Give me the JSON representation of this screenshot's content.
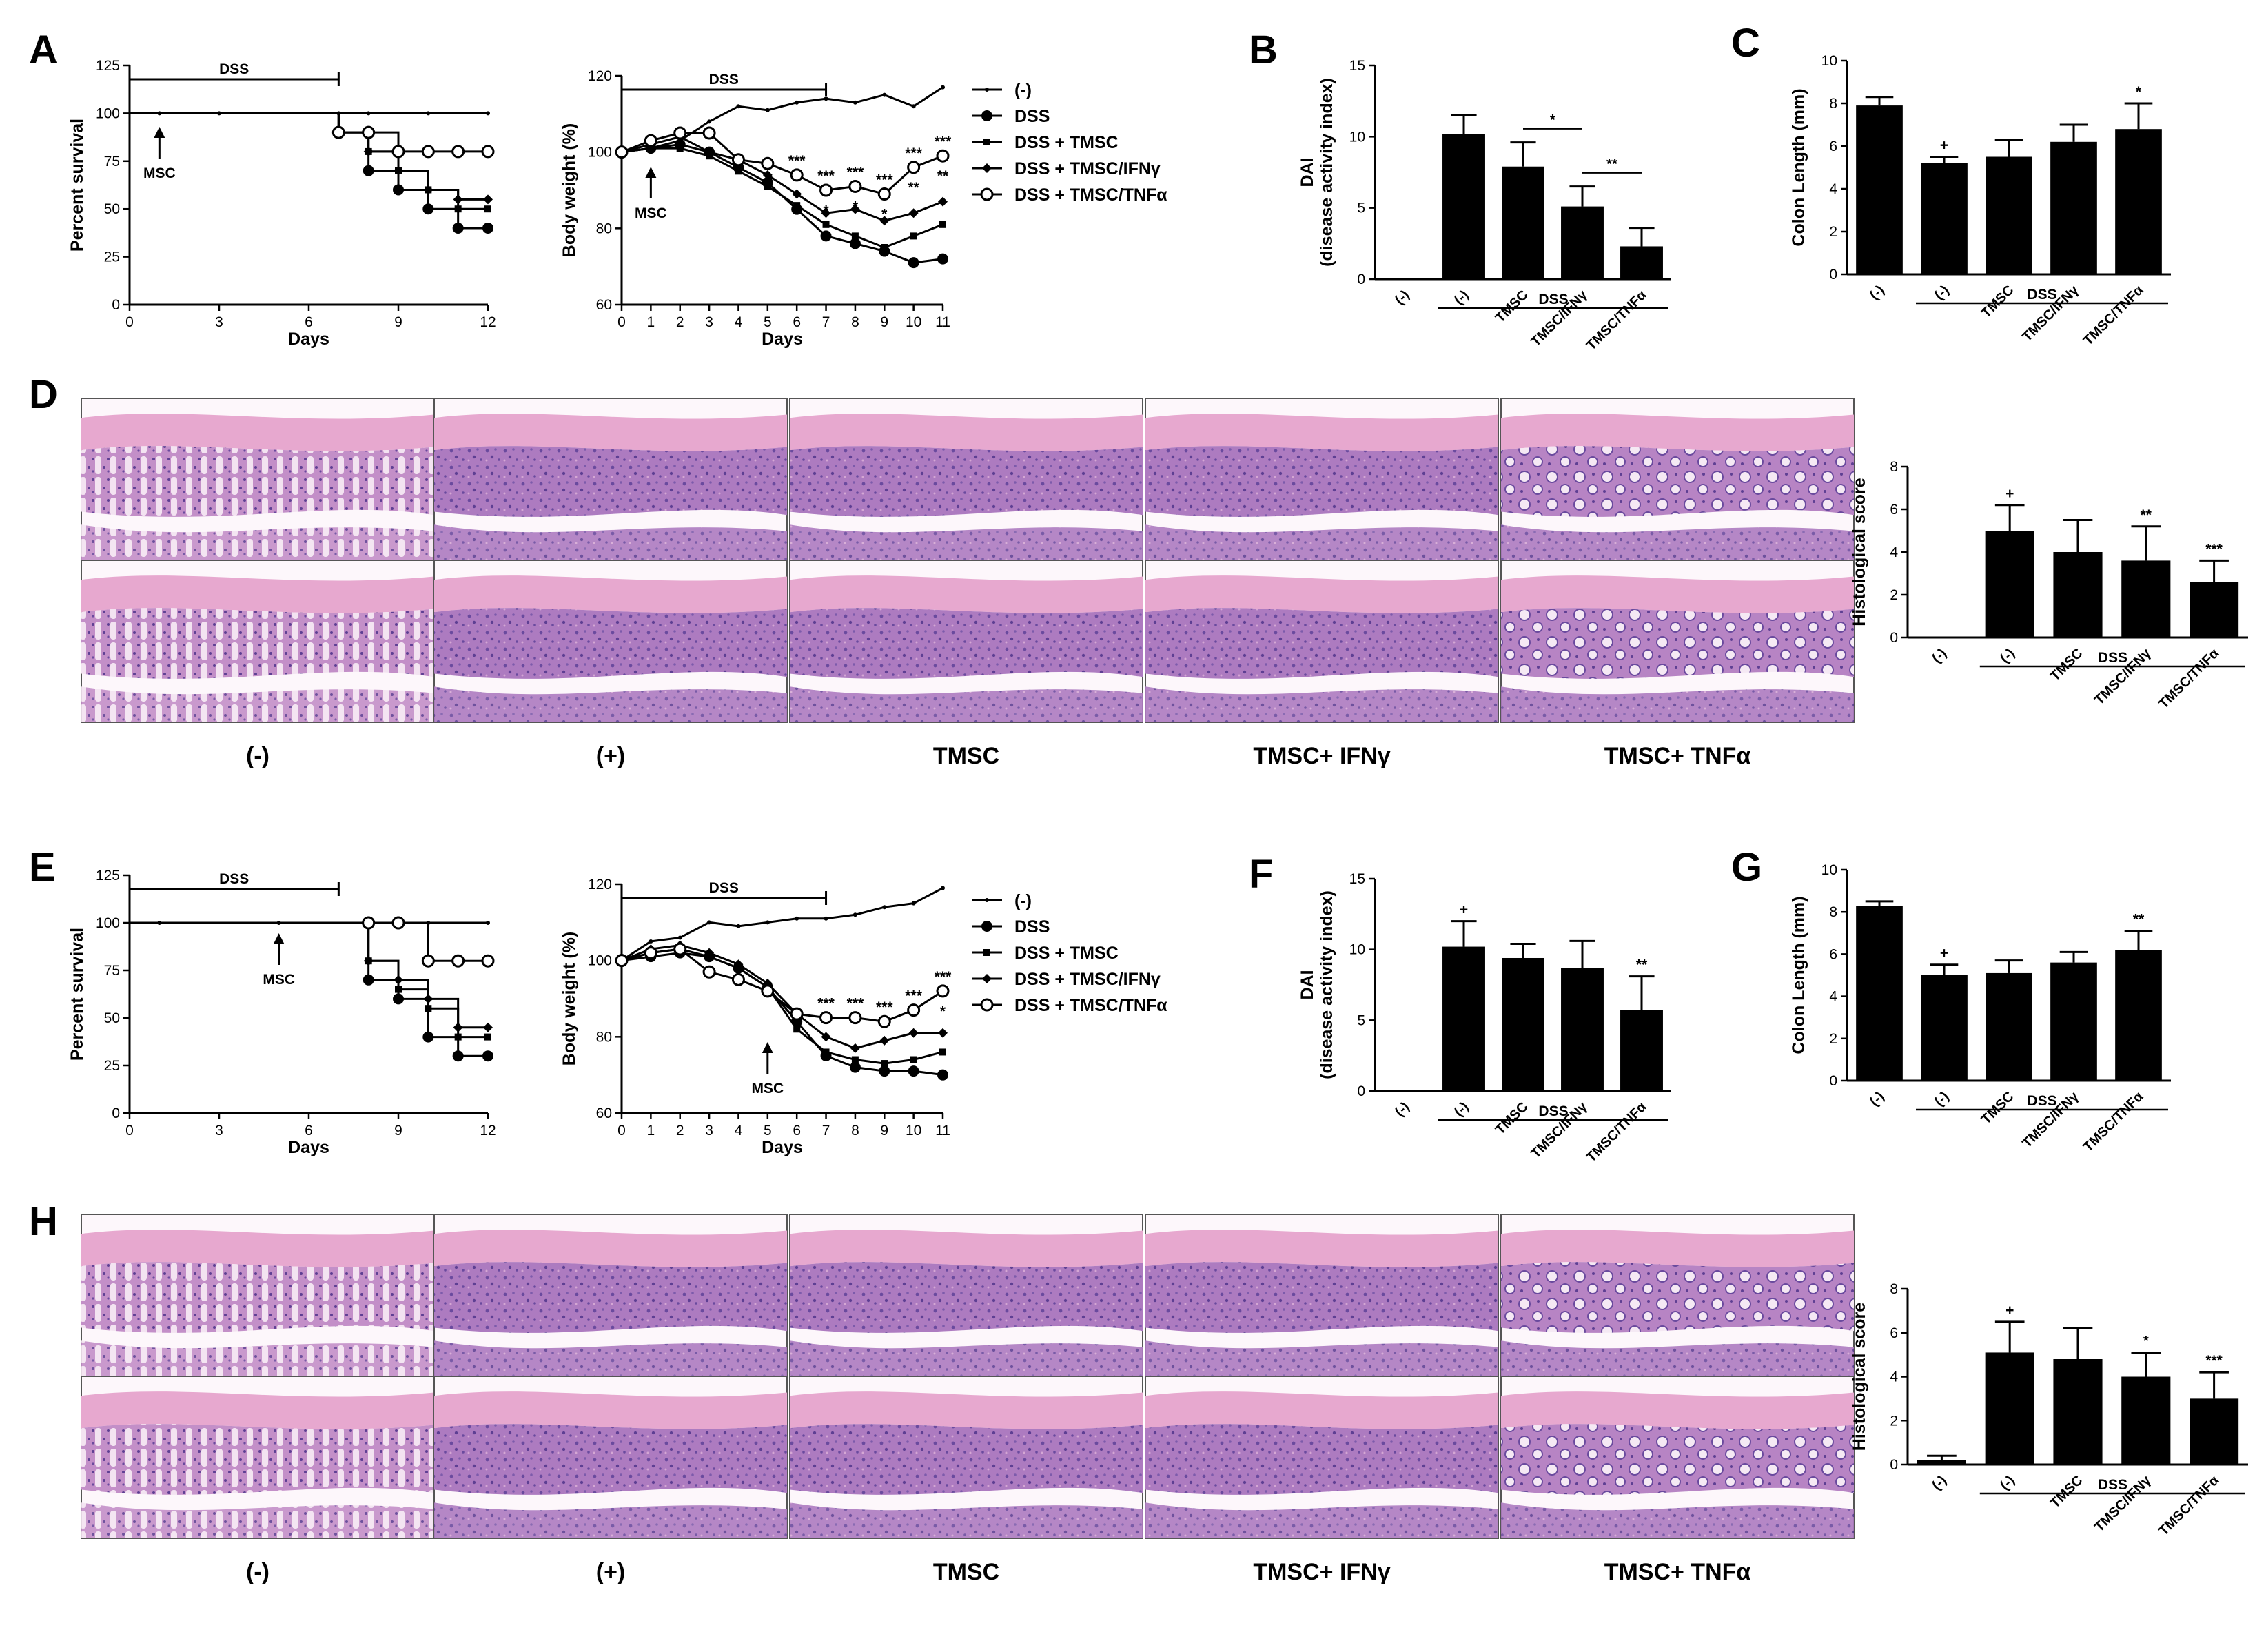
{
  "colors": {
    "ink": "#000000",
    "histo_background": "#e8cde6",
    "histo_stroma": "#b97fc0",
    "histo_nuclei": "#6a4a9e",
    "histo_muscle": "#e7a8cf"
  },
  "histology_groups": [
    "(-)",
    "(+)",
    "TMSC",
    "TMSC+ IFNγ",
    "TMSC+ TNFα"
  ],
  "chart_data": [
    {
      "id": "A-survival",
      "panel": "A",
      "type": "line",
      "kind": "survival",
      "xlabel": "Days",
      "ylabel": "Percent survival",
      "xlim": [
        0,
        12
      ],
      "ylim": [
        0,
        125
      ],
      "xticks": [
        0,
        3,
        6,
        9,
        12
      ],
      "yticks": [
        0,
        25,
        50,
        75,
        100,
        125
      ],
      "dss_label": "DSS",
      "dss_range": [
        0,
        7
      ],
      "msc_label": "MSC",
      "msc_day": 1,
      "series": [
        {
          "name": "(-)",
          "marker": "dot",
          "x": [
            0,
            1,
            3,
            7,
            8,
            10,
            12
          ],
          "y": [
            100,
            100,
            100,
            100,
            100,
            100,
            100
          ]
        },
        {
          "name": "DSS",
          "marker": "circle-filled",
          "x": [
            0,
            7,
            8,
            9,
            10,
            11,
            12
          ],
          "y": [
            100,
            90,
            70,
            60,
            50,
            40,
            40
          ]
        },
        {
          "name": "DSS + TMSC",
          "marker": "square",
          "x": [
            0,
            7,
            8,
            9,
            10,
            11,
            12
          ],
          "y": [
            100,
            90,
            80,
            70,
            60,
            50,
            50
          ]
        },
        {
          "name": "DSS + TMSC/IFNγ",
          "marker": "diamond",
          "x": [
            0,
            7,
            8,
            9,
            10,
            11,
            12
          ],
          "y": [
            100,
            90,
            80,
            70,
            60,
            55,
            55
          ]
        },
        {
          "name": "DSS + TMSC/TNFα",
          "marker": "circle-open",
          "x": [
            0,
            7,
            8,
            9,
            10,
            11,
            12
          ],
          "y": [
            100,
            90,
            90,
            80,
            80,
            80,
            80
          ]
        }
      ]
    },
    {
      "id": "A-weight",
      "panel": "A",
      "type": "line",
      "kind": "weight",
      "xlabel": "Days",
      "ylabel": "Body weight (%)",
      "xlim": [
        0,
        11
      ],
      "ylim": [
        60,
        120
      ],
      "xticks": [
        0,
        1,
        2,
        3,
        4,
        5,
        6,
        7,
        8,
        9,
        10,
        11
      ],
      "yticks": [
        60,
        80,
        100,
        120
      ],
      "dss_label": "DSS",
      "dss_range": [
        0,
        7
      ],
      "msc_label": "MSC",
      "msc_day": 1,
      "legend": [
        "(-)",
        "DSS",
        "DSS + TMSC",
        "DSS + TMSC/IFNγ",
        "DSS + TMSC/TNFα"
      ],
      "series": [
        {
          "name": "(-)",
          "marker": "dot",
          "x": [
            0,
            1,
            2,
            3,
            4,
            5,
            6,
            7,
            8,
            9,
            10,
            11
          ],
          "y": [
            100,
            101,
            103,
            108,
            112,
            111,
            113,
            114,
            113,
            115,
            112,
            117
          ]
        },
        {
          "name": "DSS",
          "marker": "circle-filled",
          "x": [
            0,
            1,
            2,
            3,
            4,
            5,
            6,
            7,
            8,
            9,
            10,
            11
          ],
          "y": [
            100,
            101,
            102,
            100,
            96,
            92,
            85,
            78,
            76,
            74,
            71,
            72
          ]
        },
        {
          "name": "DSS + TMSC",
          "marker": "square",
          "x": [
            0,
            1,
            2,
            3,
            4,
            5,
            6,
            7,
            8,
            9,
            10,
            11
          ],
          "y": [
            100,
            101,
            101,
            99,
            95,
            91,
            86,
            81,
            78,
            75,
            78,
            81
          ]
        },
        {
          "name": "DSS + TMSC/IFNγ",
          "marker": "diamond",
          "x": [
            0,
            1,
            2,
            3,
            4,
            5,
            6,
            7,
            8,
            9,
            10,
            11
          ],
          "y": [
            100,
            102,
            104,
            100,
            98,
            94,
            89,
            84,
            85,
            82,
            84,
            87
          ]
        },
        {
          "name": "DSS + TMSC/TNFα",
          "marker": "circle-open",
          "x": [
            0,
            1,
            2,
            3,
            4,
            5,
            6,
            7,
            8,
            9,
            10,
            11
          ],
          "y": [
            100,
            103,
            105,
            105,
            98,
            97,
            94,
            90,
            91,
            89,
            96,
            99
          ]
        }
      ],
      "annotations": [
        {
          "x": 6,
          "lines": [
            "***"
          ]
        },
        {
          "x": 7,
          "lines": [
            "***",
            "*"
          ]
        },
        {
          "x": 8,
          "lines": [
            "***",
            "*"
          ]
        },
        {
          "x": 9,
          "lines": [
            "***",
            "*"
          ]
        },
        {
          "x": 10,
          "lines": [
            "***",
            "**"
          ]
        },
        {
          "x": 11,
          "lines": [
            "***",
            "**"
          ]
        }
      ]
    },
    {
      "id": "B",
      "panel": "B",
      "type": "bar",
      "ylabel": "DAI\n(disease activity index)",
      "ylim": [
        0,
        15
      ],
      "yticks": [
        0,
        5,
        10,
        15
      ],
      "categories": [
        "(-)",
        "(-)",
        "TMSC",
        "TMSC/IFNγ",
        "TMSC/TNFα"
      ],
      "values": [
        0,
        10.2,
        7.9,
        5.1,
        2.3
      ],
      "errors": [
        0,
        1.3,
        1.7,
        1.4,
        1.3
      ],
      "marks": [
        "",
        "",
        "",
        "",
        ""
      ],
      "group_label": "DSS",
      "group_start": 1,
      "sig_brackets": [
        {
          "from": 2,
          "to": 3,
          "label": "*"
        },
        {
          "from": 3,
          "to": 4,
          "label": "**"
        }
      ]
    },
    {
      "id": "C",
      "panel": "C",
      "type": "bar",
      "ylabel": "Colon Length (mm)",
      "ylim": [
        0,
        10
      ],
      "yticks": [
        0,
        2,
        4,
        6,
        8,
        10
      ],
      "categories": [
        "(-)",
        "(-)",
        "TMSC",
        "TMSC/IFNγ",
        "TMSC/TNFα"
      ],
      "values": [
        7.9,
        5.2,
        5.5,
        6.2,
        6.8
      ],
      "errors": [
        0.4,
        0.3,
        0.8,
        0.8,
        1.2
      ],
      "marks": [
        "",
        "+",
        "",
        "",
        "*"
      ],
      "group_label": "DSS",
      "group_start": 1,
      "sig_brackets": []
    },
    {
      "id": "D-score",
      "panel": "D",
      "type": "bar",
      "ylabel": "Histological score",
      "ylim": [
        0,
        8
      ],
      "yticks": [
        0,
        2,
        4,
        6,
        8
      ],
      "categories": [
        "(-)",
        "(-)",
        "TMSC",
        "TMSC/IFNγ",
        "TMSC/TNFα"
      ],
      "values": [
        0,
        5.0,
        4.0,
        3.6,
        2.6
      ],
      "errors": [
        0,
        1.2,
        1.5,
        1.6,
        1.0
      ],
      "marks": [
        "",
        "+",
        "",
        "**",
        "***"
      ],
      "group_label": "DSS",
      "group_start": 1,
      "sig_brackets": []
    },
    {
      "id": "E-survival",
      "panel": "E",
      "type": "line",
      "kind": "survival",
      "xlabel": "Days",
      "ylabel": "Percent survival",
      "xlim": [
        0,
        12
      ],
      "ylim": [
        0,
        125
      ],
      "xticks": [
        0,
        3,
        6,
        9,
        12
      ],
      "yticks": [
        0,
        25,
        50,
        75,
        100,
        125
      ],
      "dss_label": "DSS",
      "dss_range": [
        0,
        7
      ],
      "msc_label": "MSC",
      "msc_day": 5,
      "series": [
        {
          "name": "(-)",
          "marker": "dot",
          "x": [
            0,
            1,
            5,
            8,
            10,
            12
          ],
          "y": [
            100,
            100,
            100,
            100,
            100,
            100
          ]
        },
        {
          "name": "DSS",
          "marker": "circle-filled",
          "x": [
            0,
            8,
            9,
            10,
            11,
            12
          ],
          "y": [
            100,
            70,
            60,
            40,
            30,
            30
          ]
        },
        {
          "name": "DSS + TMSC",
          "marker": "square",
          "x": [
            0,
            8,
            9,
            10,
            11,
            12
          ],
          "y": [
            100,
            80,
            65,
            55,
            40,
            40
          ]
        },
        {
          "name": "DSS + TMSC/IFNγ",
          "marker": "diamond",
          "x": [
            0,
            8,
            9,
            10,
            11,
            12
          ],
          "y": [
            100,
            80,
            70,
            60,
            45,
            45
          ]
        },
        {
          "name": "DSS + TMSC/TNFα",
          "marker": "circle-open",
          "x": [
            0,
            8,
            9,
            10,
            11,
            12
          ],
          "y": [
            100,
            100,
            100,
            80,
            80,
            80
          ]
        }
      ]
    },
    {
      "id": "E-weight",
      "panel": "E",
      "type": "line",
      "kind": "weight",
      "xlabel": "Days",
      "ylabel": "Body weight (%)",
      "xlim": [
        0,
        11
      ],
      "ylim": [
        60,
        120
      ],
      "xticks": [
        0,
        1,
        2,
        3,
        4,
        5,
        6,
        7,
        8,
        9,
        10,
        11
      ],
      "yticks": [
        60,
        80,
        100,
        120
      ],
      "dss_label": "DSS",
      "dss_range": [
        0,
        7
      ],
      "msc_label": "MSC",
      "msc_day": 5,
      "legend": [
        "(-)",
        "DSS",
        "DSS + TMSC",
        "DSS + TMSC/IFNγ",
        "DSS + TMSC/TNFα"
      ],
      "series": [
        {
          "name": "(-)",
          "marker": "dot",
          "x": [
            0,
            1,
            2,
            3,
            4,
            5,
            6,
            7,
            8,
            9,
            10,
            11
          ],
          "y": [
            100,
            105,
            106,
            110,
            109,
            110,
            111,
            111,
            112,
            114,
            115,
            119
          ]
        },
        {
          "name": "DSS",
          "marker": "circle-filled",
          "x": [
            0,
            1,
            2,
            3,
            4,
            5,
            6,
            7,
            8,
            9,
            10,
            11
          ],
          "y": [
            100,
            101,
            102,
            101,
            98,
            93,
            84,
            75,
            72,
            71,
            71,
            70
          ]
        },
        {
          "name": "DSS + TMSC",
          "marker": "square",
          "x": [
            0,
            1,
            2,
            3,
            4,
            5,
            6,
            7,
            8,
            9,
            10,
            11
          ],
          "y": [
            100,
            102,
            103,
            101,
            98,
            93,
            82,
            76,
            74,
            73,
            74,
            76
          ]
        },
        {
          "name": "DSS + TMSC/IFNγ",
          "marker": "diamond",
          "x": [
            0,
            1,
            2,
            3,
            4,
            5,
            6,
            7,
            8,
            9,
            10,
            11
          ],
          "y": [
            100,
            103,
            104,
            102,
            99,
            94,
            86,
            80,
            77,
            79,
            81,
            81
          ]
        },
        {
          "name": "DSS + TMSC/TNFα",
          "marker": "circle-open",
          "x": [
            0,
            1,
            2,
            3,
            4,
            5,
            6,
            7,
            8,
            9,
            10,
            11
          ],
          "y": [
            100,
            102,
            103,
            97,
            95,
            92,
            86,
            85,
            85,
            84,
            87,
            92
          ]
        }
      ],
      "annotations": [
        {
          "x": 7,
          "lines": [
            "***"
          ]
        },
        {
          "x": 8,
          "lines": [
            "***"
          ]
        },
        {
          "x": 9,
          "lines": [
            "***"
          ]
        },
        {
          "x": 10,
          "lines": [
            "***"
          ]
        },
        {
          "x": 11,
          "lines": [
            "***",
            "*"
          ]
        }
      ]
    },
    {
      "id": "F",
      "panel": "F",
      "type": "bar",
      "ylabel": "DAI\n(disease activity index)",
      "ylim": [
        0,
        15
      ],
      "yticks": [
        0,
        5,
        10,
        15
      ],
      "categories": [
        "(-)",
        "(-)",
        "TMSC",
        "TMSC/IFNγ",
        "TMSC/TNFα"
      ],
      "values": [
        0,
        10.2,
        9.4,
        8.7,
        5.7
      ],
      "errors": [
        0,
        1.8,
        1.0,
        1.9,
        2.4
      ],
      "marks": [
        "",
        "+",
        "",
        "",
        "**"
      ],
      "group_label": "DSS",
      "group_start": 1,
      "sig_brackets": []
    },
    {
      "id": "G",
      "panel": "G",
      "type": "bar",
      "ylabel": "Colon Length (mm)",
      "ylim": [
        0,
        10
      ],
      "yticks": [
        0,
        2,
        4,
        6,
        8,
        10
      ],
      "categories": [
        "(-)",
        "(-)",
        "TMSC",
        "TMSC/IFNγ",
        "TMSC/TNFα"
      ],
      "values": [
        8.3,
        5.0,
        5.1,
        5.6,
        6.2
      ],
      "errors": [
        0.2,
        0.5,
        0.6,
        0.5,
        0.9
      ],
      "marks": [
        "",
        "+",
        "",
        "",
        "**"
      ],
      "group_label": "DSS",
      "group_start": 1,
      "sig_brackets": []
    },
    {
      "id": "H-score",
      "panel": "H",
      "type": "bar",
      "ylabel": "Histological score",
      "ylim": [
        0,
        8
      ],
      "yticks": [
        0,
        2,
        4,
        6,
        8
      ],
      "categories": [
        "(-)",
        "(-)",
        "TMSC",
        "TMSC/IFNγ",
        "TMSC/TNFα"
      ],
      "values": [
        0.2,
        5.1,
        4.8,
        4.0,
        3.0
      ],
      "errors": [
        0.2,
        1.4,
        1.4,
        1.1,
        1.2
      ],
      "marks": [
        "",
        "+",
        "",
        "*",
        "***"
      ],
      "group_label": "DSS",
      "group_start": 1,
      "sig_brackets": []
    }
  ]
}
